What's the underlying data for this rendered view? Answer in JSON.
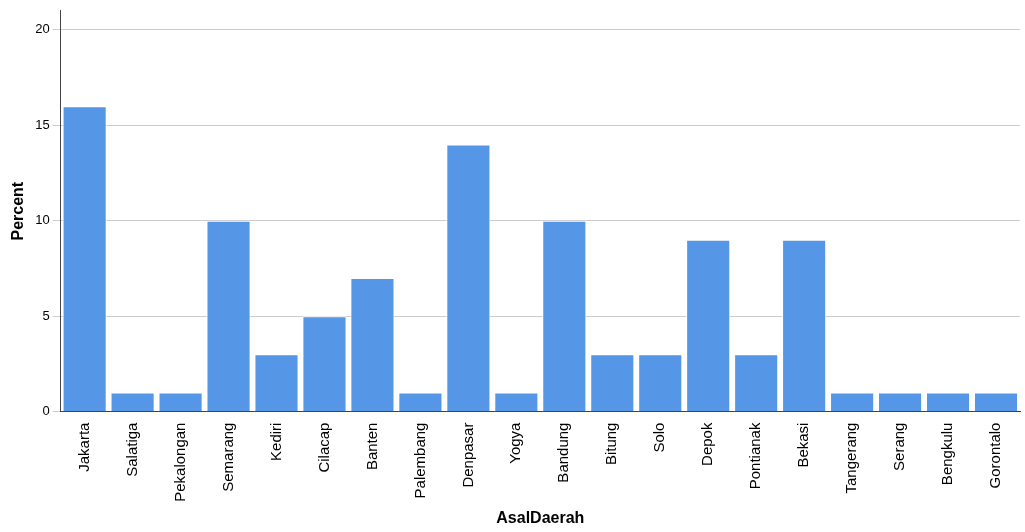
{
  "chart_data": {
    "type": "bar",
    "xlabel": "AsalDaerah",
    "ylabel": "Percent",
    "categories": [
      "Jakarta",
      "Salatiga",
      "Pekalongan",
      "Semarang",
      "Kediri",
      "Cilacap",
      "Banten",
      "Palembang",
      "Denpasar",
      "Yogya",
      "Bandung",
      "Bitung",
      "Solo",
      "Depok",
      "Pontianak",
      "Bekasi",
      "Tangerang",
      "Serang",
      "Bengkulu",
      "Gorontalo"
    ],
    "values": [
      16,
      1,
      1,
      10,
      3,
      5,
      7,
      1,
      14,
      1,
      10,
      3,
      3,
      9,
      3,
      9,
      1,
      1,
      1,
      1
    ],
    "color": "#5596e6",
    "ylim": [
      0,
      21
    ],
    "yticks": [
      0,
      5,
      10,
      15,
      20
    ],
    "grid": "y",
    "legend": false
  }
}
